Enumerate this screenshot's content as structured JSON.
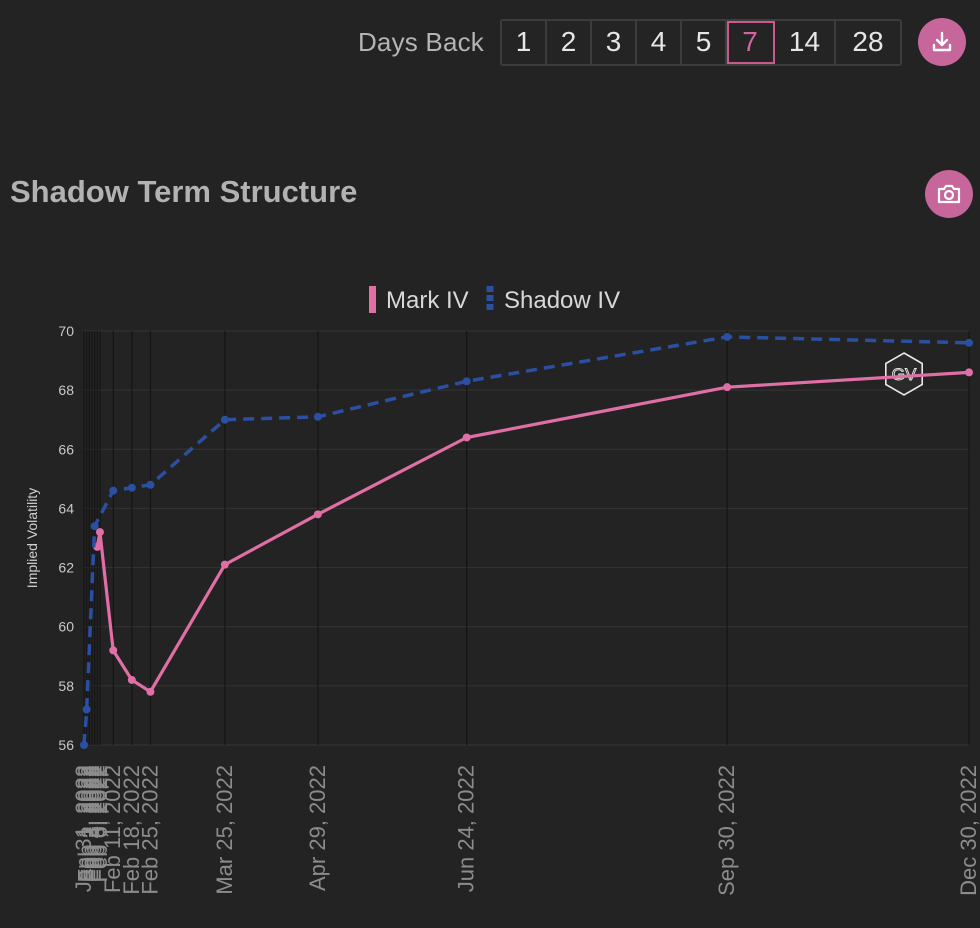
{
  "toolbar": {
    "days_label": "Days Back",
    "options": [
      "1",
      "2",
      "3",
      "4",
      "5",
      "7",
      "14",
      "28"
    ],
    "selected": "7",
    "download_icon": "download-icon"
  },
  "header": {
    "title": "Shadow Term Structure",
    "camera_icon": "camera-icon"
  },
  "watermark": "GV",
  "colors": {
    "accent": "#c7669a",
    "mark": "#e06fa6",
    "shadow": "#2a4fa3",
    "background": "#232323"
  },
  "chart_data": {
    "type": "line",
    "ylabel": "Implied Volatility",
    "ylim": [
      56,
      70
    ],
    "yticks": [
      56,
      58,
      60,
      62,
      64,
      66,
      68,
      70
    ],
    "grid": true,
    "legend_position": "top-center",
    "x_tick_labels": [
      "Jan 31, 2022",
      "Feb 1, 2022",
      "Feb 2, 2022",
      "Feb 3, 2022",
      "Feb 4, 2022",
      "Feb 5, 2022",
      "Feb 6, 2022",
      "Feb 11, 2022",
      "Feb 18, 2022",
      "Feb 25, 2022",
      "Mar 25, 2022",
      "Apr 29, 2022",
      "Jun 24, 2022",
      "Sep 30, 2022",
      "Dec 30, 2022"
    ],
    "series": [
      {
        "name": "Mark IV",
        "style": "solid",
        "color": "#e06fa6",
        "points": [
          {
            "x": "2022-02-05",
            "y": 62.7
          },
          {
            "x": "2022-02-06",
            "y": 63.2
          },
          {
            "x": "2022-02-11",
            "y": 59.2
          },
          {
            "x": "2022-02-18",
            "y": 58.2
          },
          {
            "x": "2022-02-25",
            "y": 57.8
          },
          {
            "x": "2022-03-25",
            "y": 62.1
          },
          {
            "x": "2022-04-29",
            "y": 63.8
          },
          {
            "x": "2022-06-24",
            "y": 66.4
          },
          {
            "x": "2022-09-30",
            "y": 68.1
          },
          {
            "x": "2022-12-30",
            "y": 68.6
          }
        ]
      },
      {
        "name": "Shadow IV",
        "style": "dashed",
        "color": "#2a4fa3",
        "points": [
          {
            "x": "2022-01-31",
            "y": 56.0
          },
          {
            "x": "2022-02-01",
            "y": 57.2
          },
          {
            "x": "2022-02-04",
            "y": 63.4
          },
          {
            "x": "2022-02-11",
            "y": 64.6
          },
          {
            "x": "2022-02-18",
            "y": 64.7
          },
          {
            "x": "2022-02-25",
            "y": 64.8
          },
          {
            "x": "2022-03-25",
            "y": 67.0
          },
          {
            "x": "2022-04-29",
            "y": 67.1
          },
          {
            "x": "2022-06-24",
            "y": 68.3
          },
          {
            "x": "2022-09-30",
            "y": 69.8
          },
          {
            "x": "2022-12-30",
            "y": 69.6
          }
        ]
      }
    ]
  }
}
